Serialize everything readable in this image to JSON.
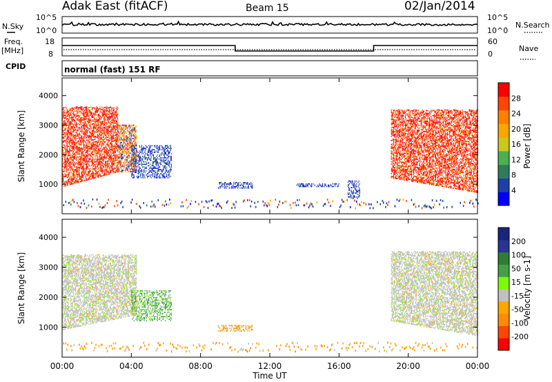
{
  "header": {
    "station": "Adak East (fitACF)",
    "beam": "Beam 15",
    "date": "02/Jan/2014"
  },
  "side_labels": {
    "nsky": "N.Sky",
    "freq_line1": "Freq.",
    "freq_line2": "[MHz]",
    "cpid": "CPID",
    "nsearch": "N.Search",
    "nave": "Nave"
  },
  "noise_panel": {
    "left_ticks": [
      "10^5",
      "10^0"
    ],
    "right_ticks": [
      "10^5",
      "10^0"
    ]
  },
  "freq_panel": {
    "left_ticks": [
      "18",
      "8"
    ],
    "right_ticks": [
      "60",
      "0"
    ],
    "freq_segments": [
      {
        "start": 0.0,
        "end": 10.0,
        "level": "high"
      },
      {
        "start": 10.0,
        "end": 18.0,
        "level": "low"
      },
      {
        "start": 18.0,
        "end": 24.0,
        "level": "high"
      }
    ]
  },
  "cpid_text": "normal (fast) 151 RF",
  "colors": {
    "power_scale": [
      "#0000ff",
      "#1e3fa8",
      "#2e7d5a",
      "#4caf50",
      "#c8c81e",
      "#ffa500",
      "#ff7f00",
      "#ff4500",
      "#ff0000"
    ],
    "velocity_scale": [
      "#1a237e",
      "#283593",
      "#2e7d32",
      "#43a047",
      "#7cfc00",
      "#c0c0c0",
      "#ffa500",
      "#ff8c00",
      "#ff4500",
      "#ff0000"
    ],
    "ground_gray": "#c0c0c0"
  },
  "chart_data": [
    {
      "type": "heatmap",
      "quantity": "Power",
      "ylabel": "Slant Range [km]",
      "yticks": [
        "1000",
        "2000",
        "3000",
        "4000"
      ],
      "ylim": [
        0,
        4600
      ],
      "xlim": [
        0,
        24
      ],
      "colorbar_label": "Power [dB]",
      "colorbar_ticks": [
        "4",
        "8",
        "12",
        "16",
        "20",
        "24",
        "28"
      ],
      "regions": [
        {
          "t0": 0.0,
          "t1": 3.2,
          "r0": 900,
          "r1": 3600,
          "dominant": "high-power"
        },
        {
          "t0": 3.2,
          "t1": 4.3,
          "r0": 1400,
          "r1": 3000,
          "dominant": "mixed"
        },
        {
          "t0": 4.0,
          "t1": 6.3,
          "r0": 1200,
          "r1": 2300,
          "dominant": "low-power"
        },
        {
          "t0": 9.0,
          "t1": 11.0,
          "r0": 850,
          "r1": 1050,
          "dominant": "low-power"
        },
        {
          "t0": 13.5,
          "t1": 16.0,
          "r0": 900,
          "r1": 1000,
          "dominant": "low-power"
        },
        {
          "t0": 16.5,
          "t1": 17.2,
          "r0": 500,
          "r1": 1100,
          "dominant": "low-power"
        },
        {
          "t0": 19.0,
          "t1": 24.0,
          "r0": 700,
          "r1": 3500,
          "dominant": "high-power"
        }
      ]
    },
    {
      "type": "heatmap",
      "quantity": "Velocity",
      "ylabel": "Slant Range [km]",
      "yticks": [
        "1000",
        "2000",
        "3000",
        "4000"
      ],
      "ylim": [
        0,
        4600
      ],
      "xlim": [
        0,
        24
      ],
      "colorbar_label": "Velocity [m s-1]",
      "colorbar_ticks": [
        "200",
        "100",
        "50",
        "15",
        "-15",
        "-50",
        "-100",
        "-200"
      ],
      "regions": [
        {
          "t0": 0.0,
          "t1": 4.3,
          "r0": 900,
          "r1": 3400,
          "dominant": "near-zero"
        },
        {
          "t0": 4.0,
          "t1": 6.3,
          "r0": 1200,
          "r1": 2200,
          "dominant": "positive"
        },
        {
          "t0": 9.0,
          "t1": 11.0,
          "r0": 850,
          "r1": 1050,
          "dominant": "negative"
        },
        {
          "t0": 19.0,
          "t1": 24.0,
          "r0": 700,
          "r1": 3500,
          "dominant": "near-zero"
        }
      ]
    }
  ],
  "x_axis": {
    "ticks": [
      "00:00",
      "04:00",
      "08:00",
      "12:00",
      "16:00",
      "20:00",
      "00:00"
    ],
    "label": "Time UT"
  }
}
